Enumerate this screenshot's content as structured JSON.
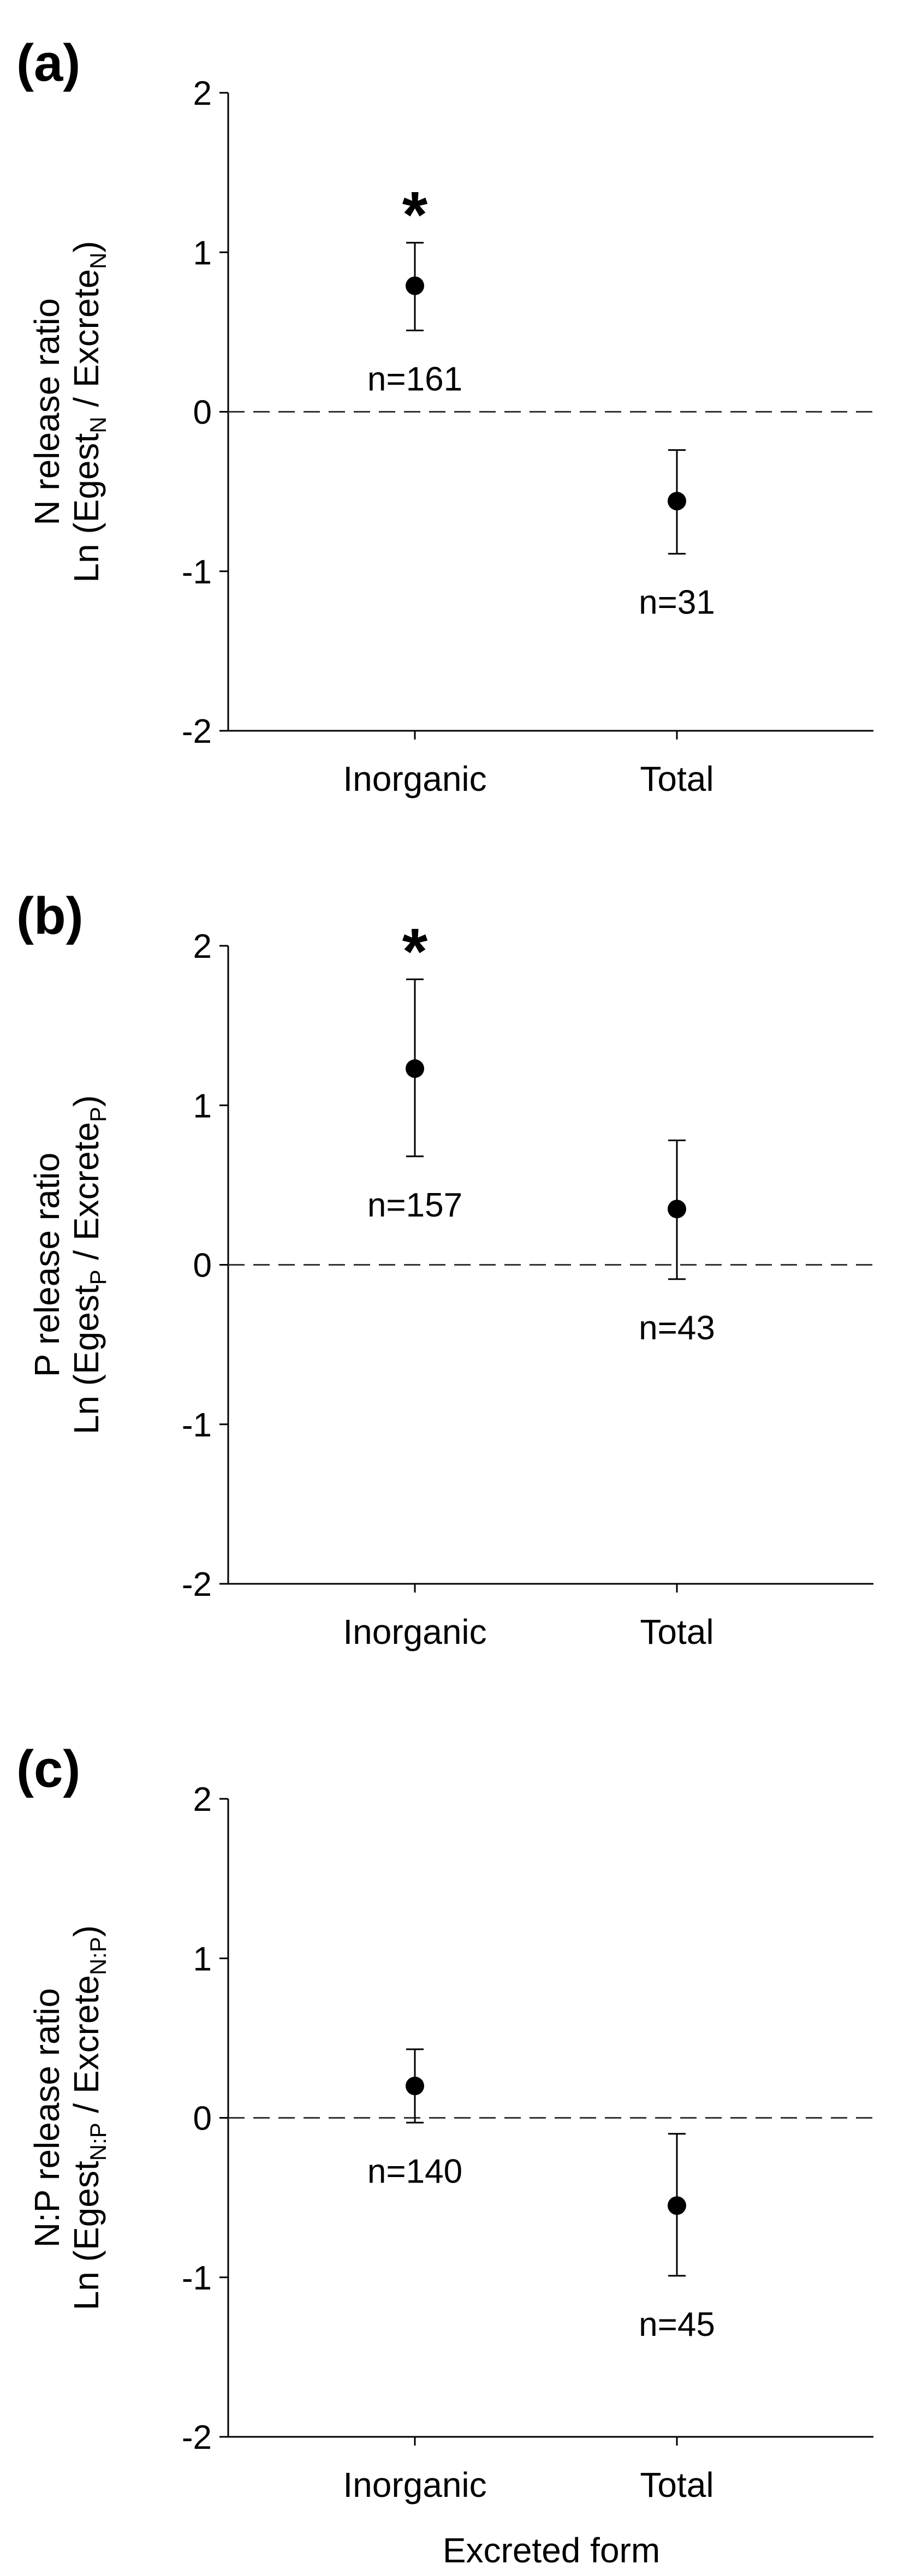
{
  "figure": {
    "xlabel": "Excreted form"
  },
  "chart_data": [
    {
      "type": "scatter",
      "panel_label": "(a)",
      "ylabel_line1": "N release ratio",
      "ylabel_line2": {
        "prefix": "Ln (Egest",
        "sub1": "N",
        "mid": " / Excrete",
        "sub2": "N",
        "suffix": ")"
      },
      "categories": [
        "Inorganic",
        "Total"
      ],
      "means": [
        0.79,
        -0.56
      ],
      "err_lower": [
        0.51,
        -0.89
      ],
      "err_upper": [
        1.06,
        -0.24
      ],
      "n_labels": [
        "n=161",
        "n=31"
      ],
      "significant": [
        true,
        false
      ],
      "sig_marker": "*",
      "ylim": [
        -2,
        2
      ],
      "yticks": [
        2,
        1,
        0,
        -1,
        -2
      ],
      "reference_line": 0
    },
    {
      "type": "scatter",
      "panel_label": "(b)",
      "ylabel_line1": "P release ratio",
      "ylabel_line2": {
        "prefix": "Ln (Egest",
        "sub1": "P",
        "mid": " / Excrete",
        "sub2": "P",
        "suffix": ")"
      },
      "categories": [
        "Inorganic",
        "Total"
      ],
      "means": [
        1.23,
        0.35
      ],
      "err_lower": [
        0.68,
        -0.09
      ],
      "err_upper": [
        1.79,
        0.78
      ],
      "n_labels": [
        "n=157",
        "n=43"
      ],
      "significant": [
        true,
        false
      ],
      "sig_marker": "*",
      "ylim": [
        -2,
        2
      ],
      "yticks": [
        2,
        1,
        0,
        -1,
        -2
      ],
      "reference_line": 0
    },
    {
      "type": "scatter",
      "panel_label": "(c)",
      "ylabel_line1": "N:P release ratio",
      "ylabel_line2": {
        "prefix": "Ln (Egest",
        "sub1": "N:P",
        "mid": " / Excrete",
        "sub2": "N:P",
        "suffix": ")"
      },
      "categories": [
        "Inorganic",
        "Total"
      ],
      "means": [
        0.2,
        -0.55
      ],
      "err_lower": [
        -0.03,
        -0.99
      ],
      "err_upper": [
        0.43,
        -0.1
      ],
      "n_labels": [
        "n=140",
        "n=45"
      ],
      "significant": [
        false,
        false
      ],
      "sig_marker": "*",
      "ylim": [
        -2,
        2
      ],
      "yticks": [
        2,
        1,
        0,
        -1,
        -2
      ],
      "reference_line": 0
    }
  ]
}
